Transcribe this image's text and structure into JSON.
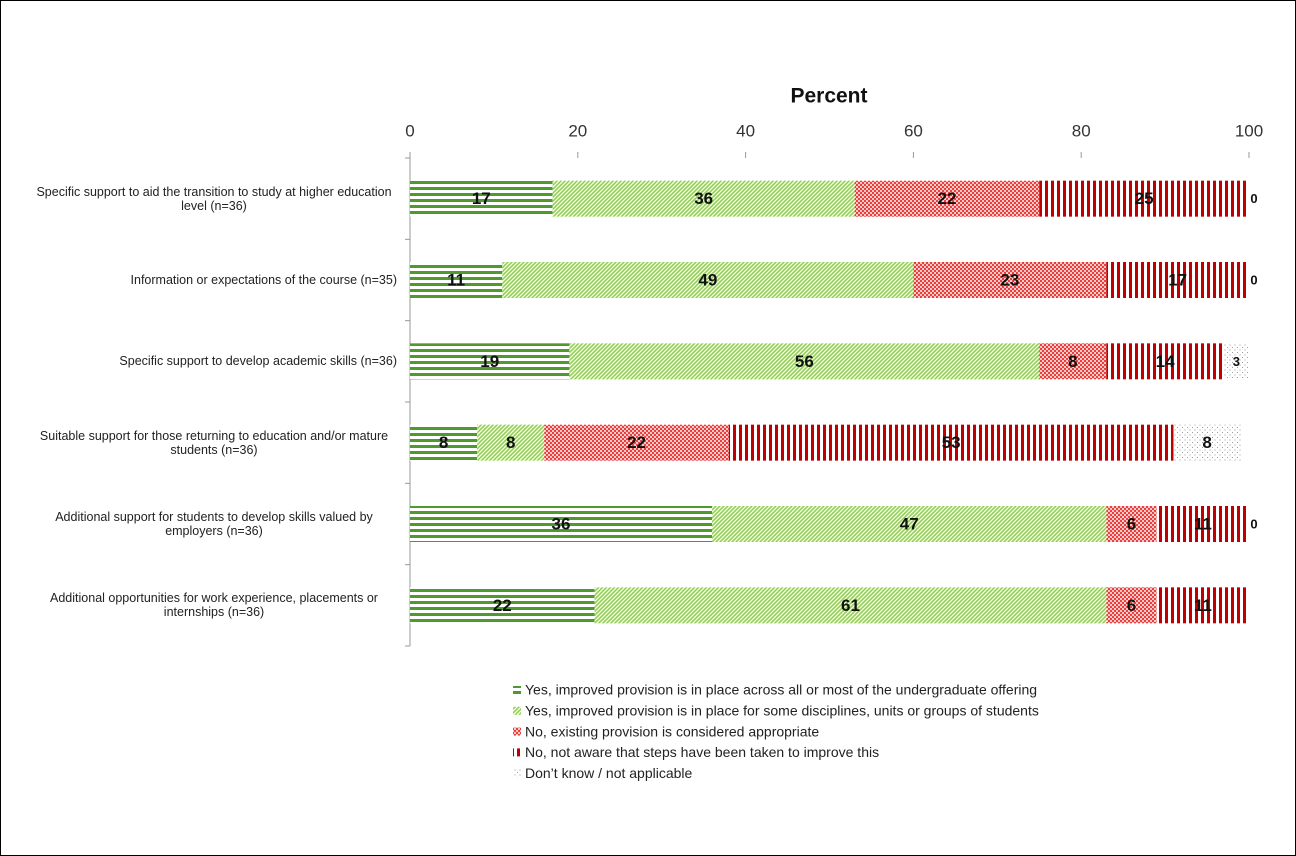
{
  "chart_data": {
    "type": "stacked-bar-horizontal",
    "x_axis_label": "Percent",
    "categories": [
      "Specific support to aid the transition to study at higher education level (n=36)",
      "Information or expectations of the course  (n=35)",
      "Specific support to develop academic skills (n=36)",
      "Suitable support for those returning to education and/or mature students (n=36)",
      "Additional support for students to develop skills valued by employers (n=36)",
      "Additional opportunities for work experience, placements or internships (n=36)"
    ],
    "series": [
      {
        "name": "Yes, improved provision is in place across all or most  of the undergraduate offering",
        "color": "#4f9a2c",
        "pattern": "horizontal",
        "values": [
          17,
          11,
          19,
          8,
          36,
          22
        ]
      },
      {
        "name": "Yes, improved provision is in place for some disciplines, units or groups of students",
        "color": "#92d050",
        "pattern": "diagonal",
        "values": [
          36,
          49,
          56,
          8,
          47,
          61
        ]
      },
      {
        "name": "No, existing provision is considered appropriate",
        "color": "#e8302e",
        "pattern": "crosshatch",
        "values": [
          22,
          23,
          8,
          22,
          6,
          6
        ]
      },
      {
        "name": "No, not aware that steps have been taken to improve this",
        "color": "#c00000",
        "pattern": "vertical",
        "values": [
          25,
          17,
          14,
          53,
          11,
          11
        ]
      },
      {
        "name": "Don’t know / not applicable",
        "color": "#9a9a9a",
        "pattern": "dots",
        "values": [
          0,
          0,
          3,
          8,
          0,
          null
        ]
      }
    ],
    "xlim": [
      0,
      100
    ],
    "xticks": [
      0,
      20,
      40,
      60,
      80,
      100
    ],
    "legend": "bottom"
  }
}
